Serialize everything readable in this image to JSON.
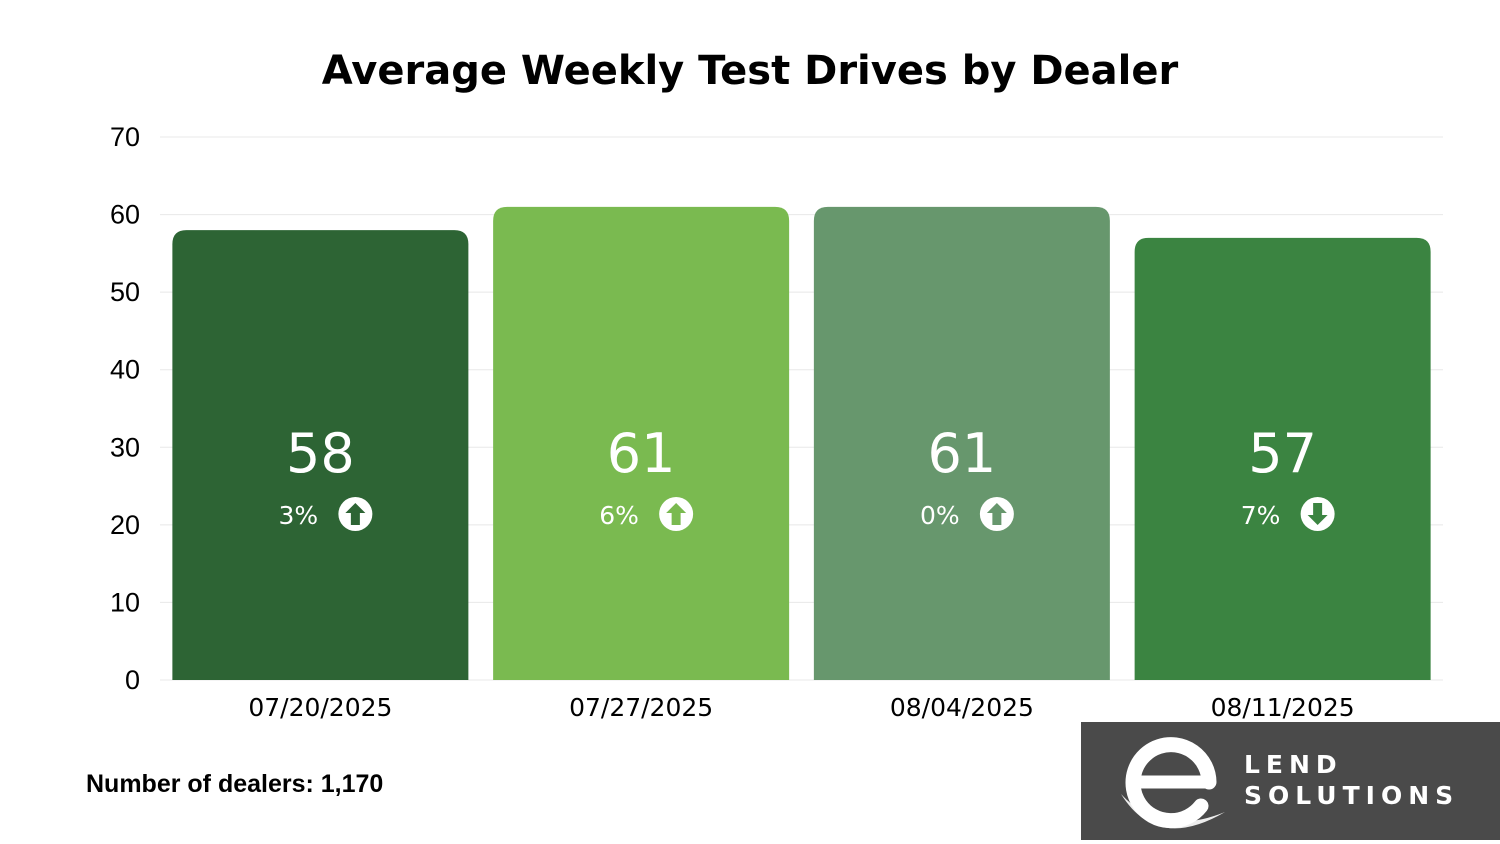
{
  "colors": {
    "bar_colors": [
      "#2d6434",
      "#7aba50",
      "#67976d",
      "#3b8441"
    ],
    "gridline": "#e8e8e8",
    "logo_background": "#4a4a4a"
  },
  "chart_data": {
    "type": "bar",
    "title": "Average Weekly Test Drives by Dealer",
    "xlabel": "",
    "ylabel": "",
    "categories": [
      "07/20/2025",
      "07/27/2025",
      "08/04/2025",
      "08/11/2025"
    ],
    "values": [
      58,
      61,
      61,
      57
    ],
    "value_labels": [
      "58",
      "61",
      "61",
      "57"
    ],
    "changes": [
      {
        "label": "3%",
        "direction": "up"
      },
      {
        "label": "6%",
        "direction": "up"
      },
      {
        "label": "0%",
        "direction": "up"
      },
      {
        "label": "7%",
        "direction": "down"
      }
    ],
    "ylim": [
      0,
      70
    ],
    "yticks": [
      0,
      10,
      20,
      30,
      40,
      50,
      60,
      70
    ],
    "grid": true,
    "legend": "none"
  },
  "footnote": "Number of dealers: 1,170",
  "logo": {
    "line1": "LEND",
    "line2": "SOLUTIONS",
    "icon": "e-swoosh-logo-icon"
  }
}
